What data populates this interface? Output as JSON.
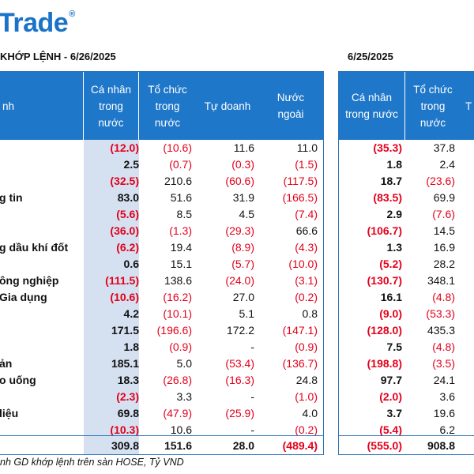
{
  "header": {
    "logo_text": "Trade",
    "logo_mark": "®",
    "title_left": "KHỚP LỆNH - 6/26/2025",
    "title_right": "6/25/2025",
    "brand_color": "#1f77c9"
  },
  "left_table": {
    "columns": [
      "nh",
      "Cá nhân\ntrong\nnước",
      "Tổ chức\ntrong\nnước",
      "Tự doanh",
      "Nước\nngoài"
    ],
    "rows": [
      {
        "label": "",
        "cells": [
          "(12.0)",
          "(10.6)",
          "11.6",
          "11.0"
        ]
      },
      {
        "label": "",
        "cells": [
          "2.5",
          "(0.7)",
          "(0.3)",
          "(1.5)"
        ]
      },
      {
        "label": "",
        "cells": [
          "(32.5)",
          "210.6",
          "(60.6)",
          "(117.5)"
        ]
      },
      {
        "label": "g tin",
        "cells": [
          "83.0",
          "51.6",
          "31.9",
          "(166.5)"
        ]
      },
      {
        "label": "",
        "cells": [
          "(5.6)",
          "8.5",
          "4.5",
          "(7.4)"
        ]
      },
      {
        "label": "",
        "cells": [
          "(36.0)",
          "(1.3)",
          "(29.3)",
          "66.6"
        ]
      },
      {
        "label": "g dầu khí đốt",
        "cells": [
          "(6.2)",
          "19.4",
          "(8.9)",
          "(4.3)"
        ]
      },
      {
        "label": "",
        "cells": [
          "0.6",
          "15.1",
          "(5.7)",
          "(10.0)"
        ]
      },
      {
        "label": "ông nghiệp",
        "cells": [
          "(111.5)",
          "138.6",
          "(24.0)",
          "(3.1)"
        ]
      },
      {
        "label": "Gia dụng",
        "cells": [
          "(10.6)",
          "(16.2)",
          "27.0",
          "(0.2)"
        ]
      },
      {
        "label": "",
        "cells": [
          "4.2",
          "(10.1)",
          "5.1",
          "0.8"
        ]
      },
      {
        "label": "",
        "cells": [
          "171.5",
          "(196.6)",
          "172.2",
          "(147.1)"
        ]
      },
      {
        "label": "",
        "cells": [
          "1.8",
          "(0.9)",
          "-",
          "(0.9)"
        ]
      },
      {
        "label": "ản",
        "cells": [
          "185.1",
          "5.0",
          "(53.4)",
          "(136.7)"
        ]
      },
      {
        "label": "o uống",
        "cells": [
          "18.3",
          "(26.8)",
          "(16.3)",
          "24.8"
        ]
      },
      {
        "label": "",
        "cells": [
          "(2.3)",
          "3.3",
          "-",
          "(1.0)"
        ]
      },
      {
        "label": "liệu",
        "cells": [
          "69.8",
          "(47.9)",
          "(25.9)",
          "4.0"
        ]
      },
      {
        "label": "",
        "cells": [
          "(10.3)",
          "10.6",
          "-",
          "(0.2)"
        ]
      }
    ],
    "total": [
      "309.8",
      "151.6",
      "28.0",
      "(489.4)"
    ]
  },
  "right_table": {
    "columns": [
      "Cá nhân\ntrong nước",
      "Tổ chức\ntrong\nnước",
      "T"
    ],
    "rows": [
      [
        "(35.3)",
        "37.8"
      ],
      [
        "1.8",
        "2.4"
      ],
      [
        "18.7",
        "(23.6)"
      ],
      [
        "(83.5)",
        "69.9"
      ],
      [
        "2.9",
        "(7.6)"
      ],
      [
        "(106.7)",
        "14.5"
      ],
      [
        "1.3",
        "16.9"
      ],
      [
        "(5.2)",
        "28.2"
      ],
      [
        "(130.7)",
        "348.1"
      ],
      [
        "16.1",
        "(4.8)"
      ],
      [
        "(9.0)",
        "(53.3)"
      ],
      [
        "(128.0)",
        "435.3"
      ],
      [
        "7.5",
        "(4.8)"
      ],
      [
        "(198.8)",
        "(3.5)"
      ],
      [
        "97.7",
        "24.1"
      ],
      [
        "(2.0)",
        "3.6"
      ],
      [
        "3.7",
        "19.6"
      ],
      [
        "(5.4)",
        "6.2"
      ]
    ],
    "total": [
      "(555.0)",
      "908.8"
    ]
  },
  "footer": {
    "note": "nh GD khớp lệnh trên sàn HOSE, Tỷ VND"
  }
}
